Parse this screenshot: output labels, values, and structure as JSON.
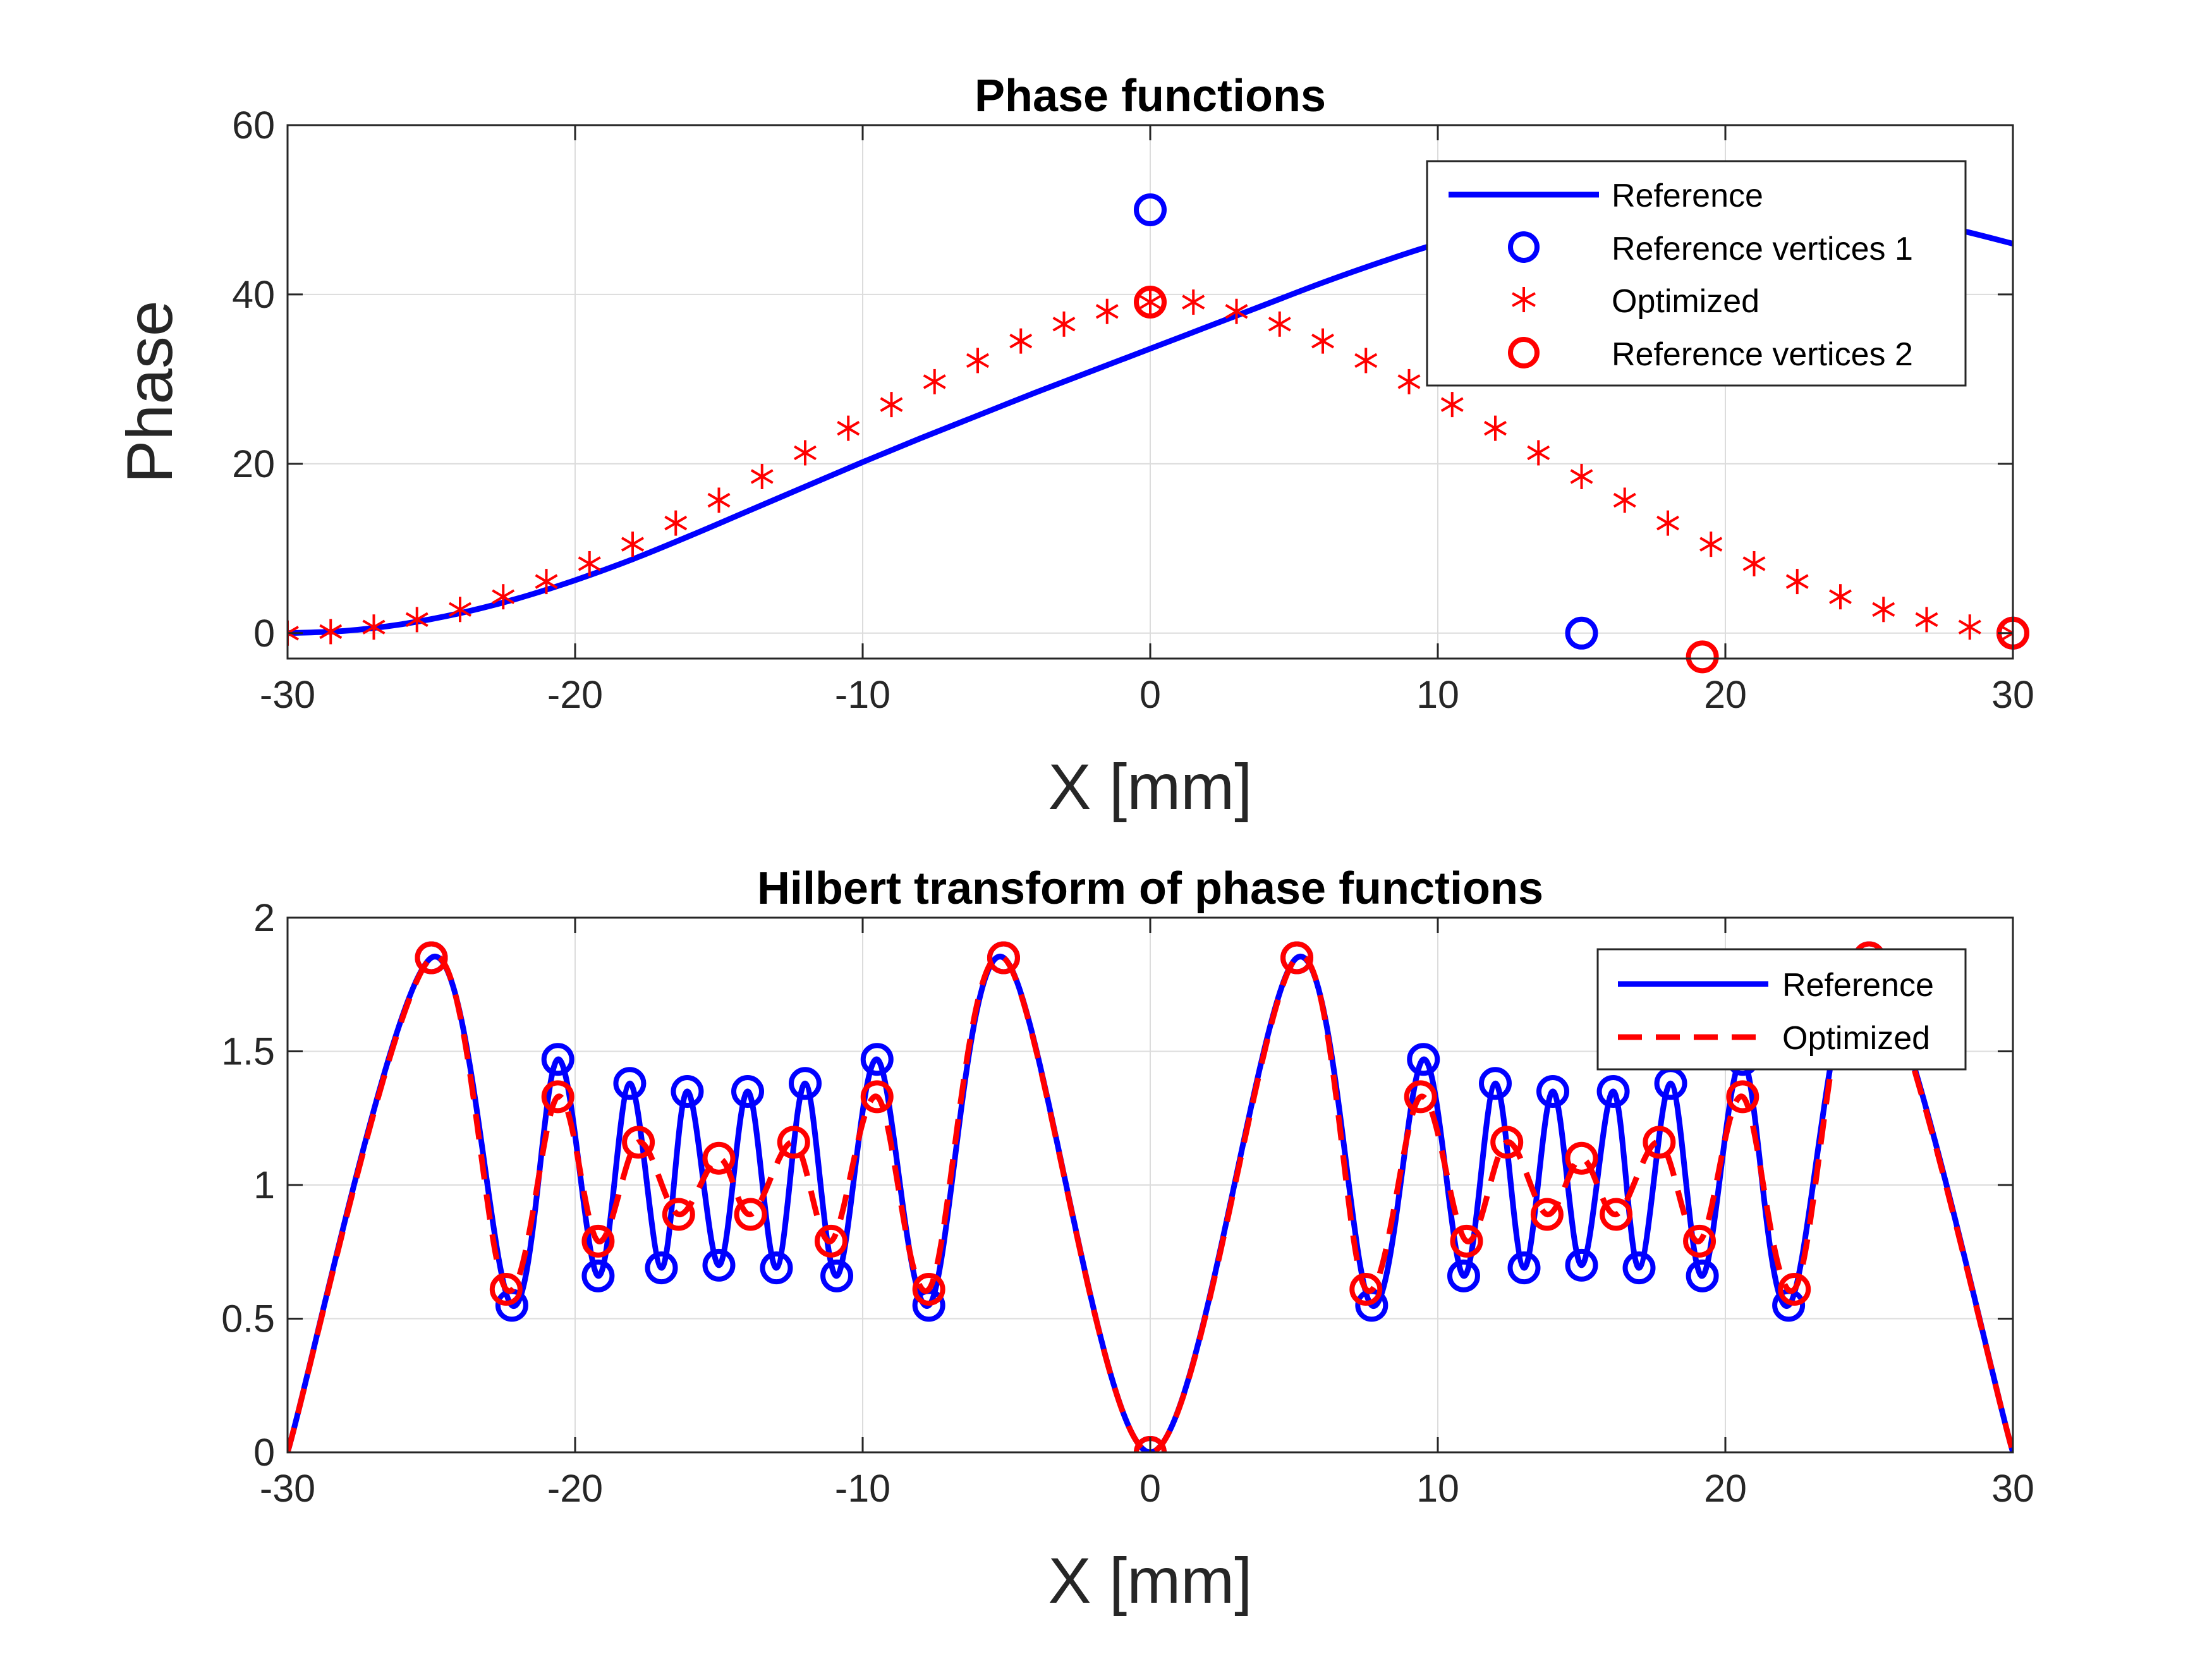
{
  "colors": {
    "reference": "#0000FF",
    "optimized": "#FF0000",
    "grid": "#DCDCDC",
    "axis": "#262626"
  },
  "chart_data": [
    {
      "type": "line",
      "title": "Phase functions",
      "xlabel": "X [mm]",
      "ylabel": "Phase",
      "xlim": [
        -30,
        30
      ],
      "ylim": [
        -3,
        60
      ],
      "xticks": [
        -30,
        -20,
        -10,
        0,
        10,
        20,
        30
      ],
      "yticks": [
        0,
        20,
        40,
        60
      ],
      "grid": true,
      "legend_position": "top-right",
      "series": [
        {
          "name": "Reference",
          "style": "solid-line",
          "x": [
            -30,
            -28,
            -26,
            -24,
            -22,
            -20,
            -18,
            -16,
            -14,
            -12,
            -10,
            -8,
            -6,
            -4,
            -2,
            0,
            2,
            4,
            6,
            8,
            10,
            12,
            14,
            16,
            18,
            20,
            22,
            24,
            26,
            28,
            30
          ],
          "y": [
            0,
            0.27,
            1.07,
            2.36,
            4.09,
            6.25,
            8.73,
            11.5,
            14.4,
            17.3,
            20.2,
            23.0,
            25.7,
            28.4,
            31.0,
            33.6,
            36.2,
            38.8,
            41.4,
            43.8,
            46.0,
            47.7,
            48.9,
            49.6,
            49.9,
            50.0,
            49.9,
            49.6,
            48.9,
            47.7,
            46.0
          ]
        },
        {
          "name": "Reference vertices 1",
          "style": "circle-markers",
          "x": [
            0,
            15,
            30
          ],
          "y": [
            50,
            0,
            0
          ]
        },
        {
          "name": "Optimized",
          "style": "star-markers",
          "x": [
            -30,
            -28.5,
            -27,
            -25.5,
            -24,
            -22.5,
            -21,
            -19.5,
            -18,
            -16.5,
            -15,
            -13.5,
            -12,
            -10.5,
            -9,
            -7.5,
            -6,
            -4.5,
            -3,
            -1.5,
            0,
            1.5,
            3,
            4.5,
            6,
            7.5,
            9,
            10.5,
            12,
            13.5,
            15,
            16.5,
            18,
            19.5,
            21,
            22.5,
            24,
            25.5,
            27,
            28.5,
            30
          ],
          "y": [
            0,
            0.18,
            0.72,
            1.6,
            2.8,
            4.3,
            6.1,
            8.2,
            10.5,
            13.0,
            15.7,
            18.5,
            21.3,
            24.2,
            27.0,
            29.7,
            32.2,
            34.5,
            36.5,
            38.0,
            39.1,
            39.1,
            38.0,
            36.5,
            34.5,
            32.2,
            29.7,
            27.0,
            24.2,
            21.3,
            18.5,
            15.7,
            13.0,
            10.5,
            8.2,
            6.1,
            4.3,
            2.8,
            1.6,
            0.72,
            0
          ]
        },
        {
          "name": "Reference vertices 2",
          "style": "circle-markers",
          "x": [
            0,
            19.2,
            30
          ],
          "y": [
            39.1,
            -2.8,
            0
          ]
        }
      ]
    },
    {
      "type": "line",
      "title": "Hilbert transform of phase functions",
      "xlabel": "X [mm]",
      "ylabel": "",
      "xlim": [
        -30,
        30
      ],
      "ylim": [
        0,
        2
      ],
      "xticks": [
        -30,
        -20,
        -10,
        0,
        10,
        20,
        30
      ],
      "yticks": [
        0,
        0.5,
        1,
        1.5,
        2
      ],
      "ytick_labels": [
        "0",
        "0.5",
        "1",
        "1.5",
        "2"
      ],
      "grid": true,
      "legend_position": "top-right",
      "series": [
        {
          "name": "Reference",
          "style": "solid-line",
          "x": [
            -30,
            -25,
            -22.2,
            -20.6,
            -19.2,
            -18.1,
            -17,
            -16.1,
            -15,
            -14,
            -13,
            -12,
            -10.9,
            -9.5,
            -7.7,
            -5.1,
            0,
            5.1,
            7.7,
            9.5,
            10.9,
            12,
            13,
            14,
            15,
            16.1,
            17,
            18.1,
            19.2,
            20.6,
            22.2,
            25,
            30
          ],
          "y": [
            0,
            1.85,
            0.55,
            1.47,
            0.66,
            1.38,
            0.69,
            1.35,
            0.7,
            1.35,
            0.69,
            1.38,
            0.66,
            1.47,
            0.55,
            1.85,
            0,
            1.85,
            0.55,
            1.47,
            0.66,
            1.38,
            0.69,
            1.35,
            0.7,
            1.35,
            0.69,
            1.38,
            0.66,
            1.47,
            0.55,
            1.85,
            0
          ]
        },
        {
          "name": "Optimized",
          "style": "dashed-line",
          "x": [
            -30,
            -25,
            -22.4,
            -20.6,
            -19.2,
            -17.8,
            -16.4,
            -15,
            -13.9,
            -12.4,
            -11.1,
            -9.5,
            -7.7,
            -5.1,
            0,
            5.1,
            7.5,
            9.4,
            11.0,
            12.4,
            13.8,
            15,
            16.2,
            17.7,
            19.1,
            20.6,
            22.4,
            25,
            30
          ],
          "y": [
            0,
            1.85,
            0.61,
            1.33,
            0.79,
            1.16,
            0.89,
            1.1,
            0.89,
            1.16,
            0.79,
            1.33,
            0.61,
            1.85,
            0,
            1.85,
            0.61,
            1.33,
            0.79,
            1.16,
            0.89,
            1.1,
            0.89,
            1.16,
            0.79,
            1.33,
            0.61,
            1.85,
            0
          ]
        }
      ]
    }
  ]
}
